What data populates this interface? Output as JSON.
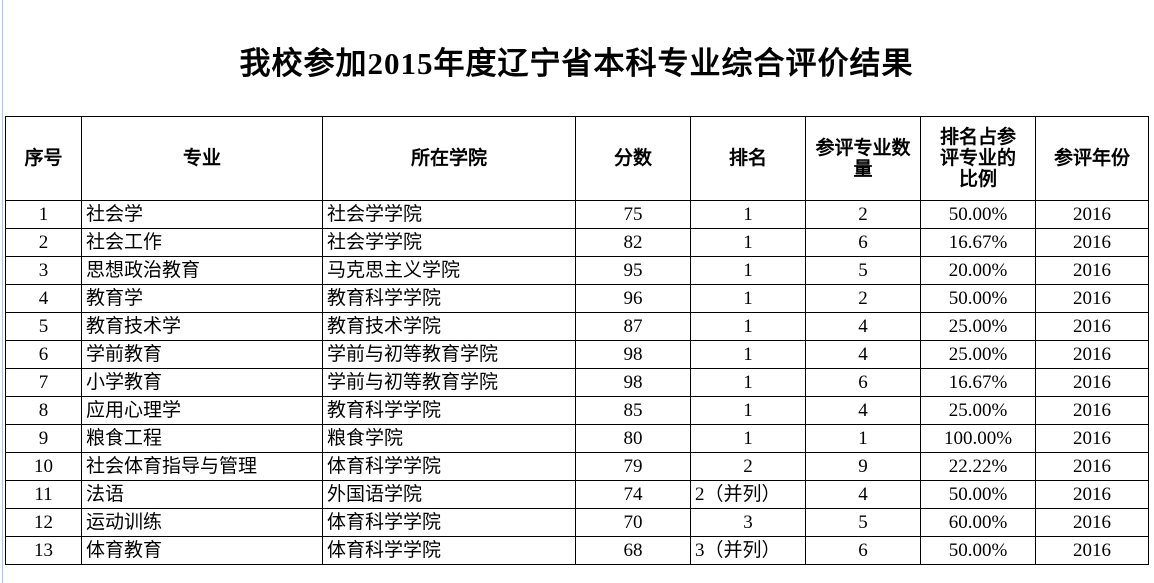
{
  "title": "我校参加2015年度辽宁省本科专业综合评价结果",
  "columns": [
    "序号",
    "专业",
    "所在学院",
    "分数",
    "排名",
    "参评专业数量",
    "排名占参评专业的比例",
    "参评年份"
  ],
  "rows": [
    [
      "1",
      "社会学",
      "社会学学院",
      "75",
      "1",
      "2",
      "50.00%",
      "2016"
    ],
    [
      "2",
      "社会工作",
      "社会学学院",
      "82",
      "1",
      "6",
      "16.67%",
      "2016"
    ],
    [
      "3",
      "思想政治教育",
      "马克思主义学院",
      "95",
      "1",
      "5",
      "20.00%",
      "2016"
    ],
    [
      "4",
      "教育学",
      "教育科学学院",
      "96",
      "1",
      "2",
      "50.00%",
      "2016"
    ],
    [
      "5",
      "教育技术学",
      "教育技术学院",
      "87",
      "1",
      "4",
      "25.00%",
      "2016"
    ],
    [
      "6",
      "学前教育",
      "学前与初等教育学院",
      "98",
      "1",
      "4",
      "25.00%",
      "2016"
    ],
    [
      "7",
      "小学教育",
      "学前与初等教育学院",
      "98",
      "1",
      "6",
      "16.67%",
      "2016"
    ],
    [
      "8",
      "应用心理学",
      "教育科学学院",
      "85",
      "1",
      "4",
      "25.00%",
      "2016"
    ],
    [
      "9",
      "粮食工程",
      "粮食学院",
      "80",
      "1",
      "1",
      "100.00%",
      "2016"
    ],
    [
      "10",
      "社会体育指导与管理",
      "体育科学学院",
      "79",
      "2",
      "9",
      "22.22%",
      "2016"
    ],
    [
      "11",
      "法语",
      "外国语学院",
      "74",
      "2（并列）",
      "4",
      "50.00%",
      "2016"
    ],
    [
      "12",
      "运动训练",
      "体育科学学院",
      "70",
      "3",
      "5",
      "60.00%",
      "2016"
    ],
    [
      "13",
      "体育教育",
      "体育科学学院",
      "68",
      "3（并列）",
      "6",
      "50.00%",
      "2016"
    ]
  ]
}
